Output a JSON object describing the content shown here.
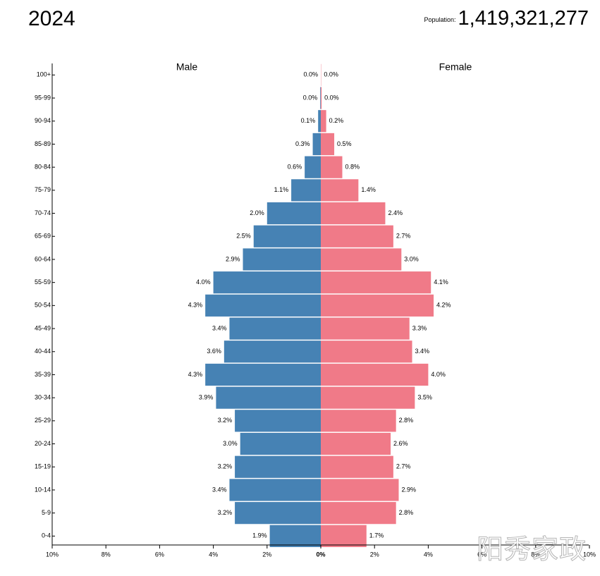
{
  "header": {
    "year": "2024",
    "population_label": "Population:",
    "population_value": "1,419,321,277"
  },
  "watermark": "阳秀家政",
  "colors": {
    "male": "#4682b4",
    "female": "#f07a88",
    "axis": "#000000"
  },
  "chart_data": {
    "type": "bar",
    "orientation": "horizontal-butterfly",
    "title": "2024",
    "categories": [
      "100+",
      "95-99",
      "90-94",
      "85-89",
      "80-84",
      "75-79",
      "70-74",
      "65-69",
      "60-64",
      "55-59",
      "50-54",
      "45-49",
      "40-44",
      "35-39",
      "30-34",
      "25-29",
      "20-24",
      "15-19",
      "10-14",
      "5-9",
      "0-4"
    ],
    "series": [
      {
        "name": "Male",
        "values": [
          0.0,
          0.02,
          0.1,
          0.3,
          0.6,
          1.1,
          2.0,
          2.5,
          2.9,
          4.0,
          4.3,
          3.4,
          3.6,
          4.3,
          3.9,
          3.2,
          3.0,
          3.2,
          3.4,
          3.2,
          1.9
        ],
        "labels": [
          "0.0%",
          "0.0%",
          "0.1%",
          "0.3%",
          "0.6%",
          "1.1%",
          "2.0%",
          "2.5%",
          "2.9%",
          "4.0%",
          "4.3%",
          "3.4%",
          "3.6%",
          "4.3%",
          "3.9%",
          "3.2%",
          "3.0%",
          "3.2%",
          "3.4%",
          "3.2%",
          "1.9%"
        ]
      },
      {
        "name": "Female",
        "values": [
          0.01,
          0.03,
          0.2,
          0.5,
          0.8,
          1.4,
          2.4,
          2.7,
          3.0,
          4.1,
          4.2,
          3.3,
          3.4,
          4.0,
          3.5,
          2.8,
          2.6,
          2.7,
          2.9,
          2.8,
          1.7
        ],
        "labels": [
          "0.0%",
          "0.0%",
          "0.2%",
          "0.5%",
          "0.8%",
          "1.4%",
          "2.4%",
          "2.7%",
          "3.0%",
          "4.1%",
          "4.2%",
          "3.3%",
          "3.4%",
          "4.0%",
          "3.5%",
          "2.8%",
          "2.6%",
          "2.7%",
          "2.9%",
          "2.8%",
          "1.7%"
        ]
      }
    ],
    "x_ticks": [
      -10,
      -8,
      -6,
      -4,
      -2,
      0,
      2,
      4,
      6,
      8,
      10
    ],
    "x_tick_labels": [
      "10%",
      "8%",
      "6%",
      "4%",
      "2%",
      "0%",
      "2%",
      "4%",
      "6%",
      "8%",
      "10%"
    ],
    "xlim": [
      -10,
      10
    ],
    "unit": "%"
  }
}
